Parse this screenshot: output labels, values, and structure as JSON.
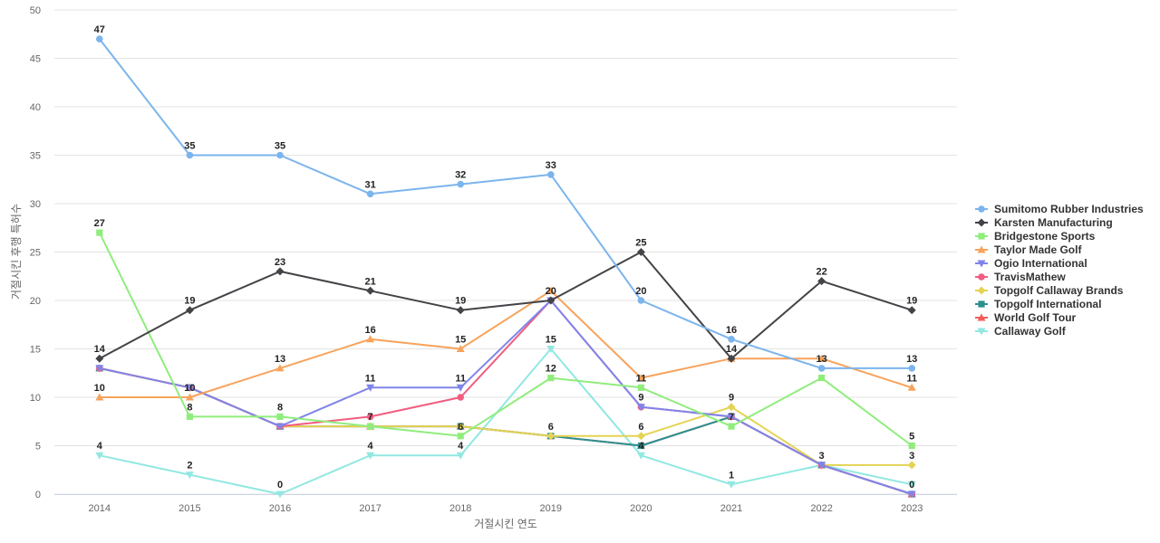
{
  "chart_data": {
    "type": "line",
    "xlabel": "거절시킨 연도",
    "ylabel": "거절시킨 후행 특허수",
    "ylim": [
      0,
      50
    ],
    "yticks": [
      0,
      5,
      10,
      15,
      20,
      25,
      30,
      35,
      40,
      45,
      50
    ],
    "grid": true,
    "legend_position": "right",
    "categories": [
      "2014",
      "2015",
      "2016",
      "2017",
      "2018",
      "2019",
      "2020",
      "2021",
      "2022",
      "2023"
    ],
    "series": [
      {
        "name": "Sumitomo Rubber Industries",
        "color": "#7cb5ec",
        "marker": "circle",
        "values": [
          47,
          35,
          35,
          31,
          32,
          33,
          20,
          16,
          13,
          13
        ]
      },
      {
        "name": "Karsten Manufacturing",
        "color": "#434348",
        "marker": "diamond",
        "values": [
          14,
          19,
          23,
          21,
          19,
          20,
          25,
          14,
          22,
          19
        ]
      },
      {
        "name": "Bridgestone Sports",
        "color": "#90ed7d",
        "marker": "square",
        "values": [
          27,
          8,
          8,
          7,
          6,
          12,
          11,
          7,
          12,
          5
        ]
      },
      {
        "name": "Taylor Made Golf",
        "color": "#f7a35c",
        "marker": "triangle",
        "values": [
          10,
          10,
          13,
          16,
          15,
          21,
          12,
          14,
          14,
          11
        ]
      },
      {
        "name": "Ogio International",
        "color": "#8085e9",
        "marker": "triangle-down",
        "values": [
          13,
          11,
          7,
          11,
          11,
          20,
          9,
          8,
          3,
          0
        ]
      },
      {
        "name": "TravisMathew",
        "color": "#f15c80",
        "marker": "circle",
        "values": [
          13,
          11,
          7,
          8,
          10,
          20,
          9,
          8,
          3,
          0
        ]
      },
      {
        "name": "Topgolf Callaway Brands",
        "color": "#e4d354",
        "marker": "diamond",
        "values": [
          13,
          11,
          7,
          7,
          7,
          6,
          6,
          9,
          3,
          3
        ]
      },
      {
        "name": "Topgolf International",
        "color": "#2b908f",
        "marker": "square",
        "values": [
          13,
          11,
          7,
          7,
          7,
          6,
          5,
          8,
          3,
          0
        ]
      },
      {
        "name": "World Golf Tour",
        "color": "#f45b5b",
        "marker": "triangle",
        "values": [
          13,
          11,
          7,
          7,
          7,
          6,
          5,
          8,
          3,
          0
        ]
      },
      {
        "name": "Callaway Golf",
        "color": "#91e8e1",
        "marker": "triangle-down",
        "values": [
          4,
          2,
          0,
          4,
          4,
          15,
          4,
          1,
          3,
          1
        ]
      }
    ],
    "data_labels": [
      {
        "x": "2014",
        "y": 47,
        "text": "47"
      },
      {
        "x": "2014",
        "y": 27,
        "text": "27"
      },
      {
        "x": "2014",
        "y": 14,
        "text": "14"
      },
      {
        "x": "2014",
        "y": 10,
        "text": "10"
      },
      {
        "x": "2014",
        "y": 4,
        "text": "4"
      },
      {
        "x": "2015",
        "y": 35,
        "text": "35"
      },
      {
        "x": "2015",
        "y": 19,
        "text": "19"
      },
      {
        "x": "2015",
        "y": 10,
        "text": "10"
      },
      {
        "x": "2015",
        "y": 8,
        "text": "8"
      },
      {
        "x": "2015",
        "y": 2,
        "text": "2"
      },
      {
        "x": "2016",
        "y": 35,
        "text": "35"
      },
      {
        "x": "2016",
        "y": 23,
        "text": "23"
      },
      {
        "x": "2016",
        "y": 13,
        "text": "13"
      },
      {
        "x": "2016",
        "y": 8,
        "text": "8"
      },
      {
        "x": "2016",
        "y": 0,
        "text": "0"
      },
      {
        "x": "2017",
        "y": 31,
        "text": "31"
      },
      {
        "x": "2017",
        "y": 21,
        "text": "21"
      },
      {
        "x": "2017",
        "y": 16,
        "text": "16"
      },
      {
        "x": "2017",
        "y": 11,
        "text": "11"
      },
      {
        "x": "2017",
        "y": 7,
        "text": "7"
      },
      {
        "x": "2017",
        "y": 4,
        "text": "4"
      },
      {
        "x": "2018",
        "y": 32,
        "text": "32"
      },
      {
        "x": "2018",
        "y": 19,
        "text": "19"
      },
      {
        "x": "2018",
        "y": 15,
        "text": "15"
      },
      {
        "x": "2018",
        "y": 11,
        "text": "11"
      },
      {
        "x": "2018",
        "y": 6,
        "text": "6"
      },
      {
        "x": "2018",
        "y": 4,
        "text": "4"
      },
      {
        "x": "2019",
        "y": 33,
        "text": "33"
      },
      {
        "x": "2019",
        "y": 20,
        "text": "20"
      },
      {
        "x": "2019",
        "y": 15,
        "text": "15"
      },
      {
        "x": "2019",
        "y": 12,
        "text": "12"
      },
      {
        "x": "2019",
        "y": 6,
        "text": "6"
      },
      {
        "x": "2020",
        "y": 25,
        "text": "25"
      },
      {
        "x": "2020",
        "y": 20,
        "text": "20"
      },
      {
        "x": "2020",
        "y": 11,
        "text": "11"
      },
      {
        "x": "2020",
        "y": 9,
        "text": "9"
      },
      {
        "x": "2020",
        "y": 6,
        "text": "6"
      },
      {
        "x": "2020",
        "y": 4,
        "text": "4"
      },
      {
        "x": "2021",
        "y": 16,
        "text": "16"
      },
      {
        "x": "2021",
        "y": 14,
        "text": "14"
      },
      {
        "x": "2021",
        "y": 9,
        "text": "9"
      },
      {
        "x": "2021",
        "y": 7,
        "text": "7"
      },
      {
        "x": "2021",
        "y": 1,
        "text": "1"
      },
      {
        "x": "2022",
        "y": 22,
        "text": "22"
      },
      {
        "x": "2022",
        "y": 13,
        "text": "13"
      },
      {
        "x": "2022",
        "y": 3,
        "text": "3"
      },
      {
        "x": "2023",
        "y": 19,
        "text": "19"
      },
      {
        "x": "2023",
        "y": 13,
        "text": "13"
      },
      {
        "x": "2023",
        "y": 11,
        "text": "11"
      },
      {
        "x": "2023",
        "y": 5,
        "text": "5"
      },
      {
        "x": "2023",
        "y": 3,
        "text": "3"
      },
      {
        "x": "2023",
        "y": 0,
        "text": "0"
      }
    ]
  }
}
